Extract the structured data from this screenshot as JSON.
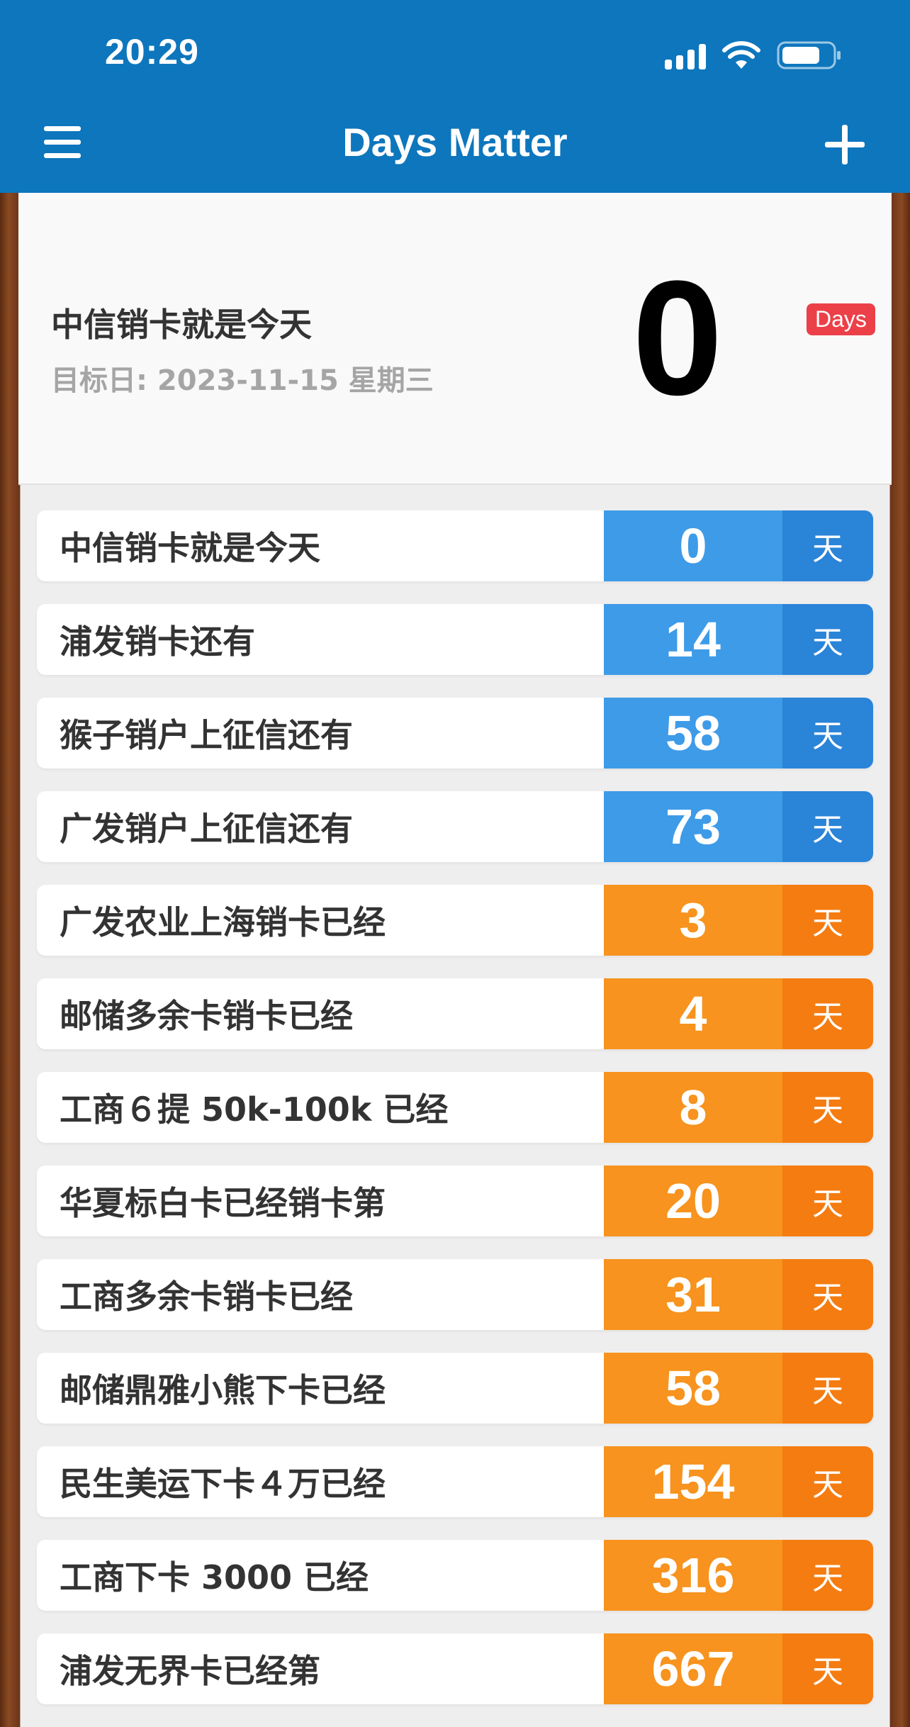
{
  "status_bar": {
    "time": "20:29"
  },
  "nav": {
    "title": "Days Matter",
    "menu_icon": "menu-icon",
    "add_icon": "plus-icon"
  },
  "hero": {
    "title": "中信销卡就是今天",
    "subtitle": "目标日: 2023-11-15 星期三",
    "count": "0",
    "badge": "Days"
  },
  "colors": {
    "nav_bg": "#0d76bd",
    "future_num": "#3e9be8",
    "future_unit": "#2a84d8",
    "past_num": "#f7931e",
    "past_unit": "#f57c10",
    "badge": "#ec4049"
  },
  "events": [
    {
      "label": "中信销卡就是今天",
      "days": "0",
      "unit": "天",
      "kind": "future"
    },
    {
      "label": "浦发销卡还有",
      "days": "14",
      "unit": "天",
      "kind": "future"
    },
    {
      "label": "猴子销户上征信还有",
      "days": "58",
      "unit": "天",
      "kind": "future"
    },
    {
      "label": "广发销户上征信还有",
      "days": "73",
      "unit": "天",
      "kind": "future"
    },
    {
      "label": "广发农业上海销卡已经",
      "days": "3",
      "unit": "天",
      "kind": "past"
    },
    {
      "label": "邮储多余卡销卡已经",
      "days": "4",
      "unit": "天",
      "kind": "past"
    },
    {
      "label": "工商６提 50k-100k 已经",
      "days": "8",
      "unit": "天",
      "kind": "past"
    },
    {
      "label": "华夏标白卡已经销卡第",
      "days": "20",
      "unit": "天",
      "kind": "past"
    },
    {
      "label": "工商多余卡销卡已经",
      "days": "31",
      "unit": "天",
      "kind": "past"
    },
    {
      "label": "邮储鼎雅小熊下卡已经",
      "days": "58",
      "unit": "天",
      "kind": "past"
    },
    {
      "label": "民生美运下卡４万已经",
      "days": "154",
      "unit": "天",
      "kind": "past"
    },
    {
      "label": "工商下卡 3000 已经",
      "days": "316",
      "unit": "天",
      "kind": "past"
    },
    {
      "label": "浦发无界卡已经第",
      "days": "667",
      "unit": "天",
      "kind": "past"
    }
  ]
}
